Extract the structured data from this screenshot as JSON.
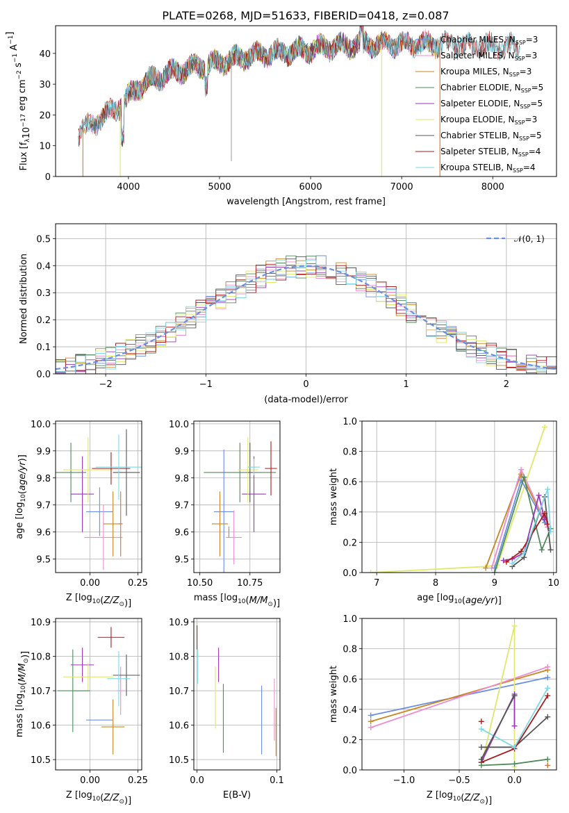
{
  "figure": {
    "title": "PLATE=0268, MJD=51633, FIBERID=0418, z=0.087"
  },
  "colors": {
    "Chabrier MILES": "#6a8fe0",
    "Salpeter MILES": "#ee8ad0",
    "Kroupa MILES": "#c8861e",
    "Chabrier ELODIE": "#4e8a5a",
    "Salpeter ELODIE": "#9a35b8",
    "Kroupa ELODIE": "#dfe86a",
    "Chabrier STELIB": "#555555",
    "Salpeter STELIB": "#aa1a1a",
    "Kroupa STELIB": "#7fd8e6",
    "orange": "#e07020",
    "normal": "#6a8fe0"
  },
  "chart_data": [
    {
      "type": "line",
      "panel": "spectrum",
      "title": "PLATE=0268, MJD=51633, FIBERID=0418, z=0.087",
      "xlabel": "wavelength [Angstrom, rest frame]",
      "ylabel": "Flux [f",
      "ylabel_sub": "λ",
      "ylabel_rest": "10",
      "ylabel_exp": "−17",
      "ylabel_tail": " erg cm",
      "ylabel_exp2": "−2",
      "ylabel_tail2": " s",
      "ylabel_exp3": "−1",
      "ylabel_tail3": " A",
      "ylabel_exp4": "−1",
      "ylabel_end": "]",
      "xlim": [
        3200,
        8700
      ],
      "ylim": [
        0,
        49
      ],
      "xticks": [
        "4000",
        "5000",
        "6000",
        "7000",
        "8000"
      ],
      "yticks": [
        "0",
        "10",
        "20",
        "30",
        "40"
      ],
      "legend": [
        {
          "name": "Chabrier MILES",
          "nssp": "3"
        },
        {
          "name": "Salpeter MILES",
          "nssp": "3"
        },
        {
          "name": "Kroupa MILES",
          "nssp": "3"
        },
        {
          "name": "Chabrier ELODIE",
          "nssp": "5"
        },
        {
          "name": "Salpeter ELODIE",
          "nssp": "5"
        },
        {
          "name": "Kroupa ELODIE",
          "nssp": "3"
        },
        {
          "name": "Chabrier STELIB",
          "nssp": "5"
        },
        {
          "name": "Salpeter STELIB",
          "nssp": "4"
        },
        {
          "name": "Kroupa STELIB",
          "nssp": "4"
        }
      ],
      "legend_nssp_label": "N",
      "legend_nssp_sub": "SSP",
      "continuum": [
        [
          3450,
          14
        ],
        [
          3600,
          17
        ],
        [
          3800,
          21
        ],
        [
          3950,
          24
        ],
        [
          4100,
          29
        ],
        [
          4300,
          32
        ],
        [
          4500,
          34
        ],
        [
          4800,
          36
        ],
        [
          5000,
          37
        ],
        [
          5300,
          39
        ],
        [
          5600,
          40
        ],
        [
          5900,
          41
        ],
        [
          6200,
          42
        ],
        [
          6600,
          43
        ],
        [
          7000,
          43
        ],
        [
          7400,
          43
        ],
        [
          7800,
          42.5
        ],
        [
          8300,
          42
        ]
      ],
      "dropouts": [
        {
          "x": 3500,
          "color": "Kroupa MILES"
        },
        {
          "x": 3910,
          "color": "Kroupa ELODIE"
        },
        {
          "x": 6780,
          "color": "Kroupa ELODIE"
        },
        {
          "x": 7420,
          "color": "orange"
        }
      ]
    },
    {
      "type": "histogram",
      "panel": "residuals",
      "xlabel": "(data-model)/error",
      "ylabel": "Normed distribution",
      "xlim": [
        -2.5,
        2.5
      ],
      "ylim": [
        0,
        0.555
      ],
      "xticks": [
        "−2",
        "−1",
        "0",
        "1",
        "2"
      ],
      "xtick_values": [
        -2,
        -1,
        0,
        1,
        2
      ],
      "yticks": [
        "0.0",
        "0.1",
        "0.2",
        "0.3",
        "0.4",
        "0.5"
      ],
      "ytick_values": [
        0,
        0.1,
        0.2,
        0.3,
        0.4,
        0.5
      ],
      "legend": [
        "𝒩(0, 1)"
      ],
      "bin_width": 0.1,
      "bin_start": -2.5
    },
    {
      "type": "errorbar",
      "panel": "age-vs-Z",
      "xlabel": "Z [log",
      "xlabel_sub": "10",
      "xlabel_rest": "(Z/Z",
      "xlabel_sub2": "⊙",
      "xlabel_end": ")]",
      "ylabel": "age  [log",
      "ylabel_sub": "10",
      "ylabel_rest": "(age/yr)]",
      "xlim": [
        -0.18,
        0.27
      ],
      "ylim": [
        9.45,
        10.01
      ],
      "xticks": [
        "0.00",
        "0.25"
      ],
      "xtick_values": [
        0,
        0.25
      ],
      "yticks": [
        "9.5",
        "9.6",
        "9.7",
        "9.8",
        "9.9",
        "10.0"
      ],
      "ytick_values": [
        9.5,
        9.6,
        9.7,
        9.8,
        9.9,
        10.0
      ],
      "points": [
        {
          "c": "Chabrier MILES",
          "x": 0.05,
          "xe": 0.07,
          "y": 9.675,
          "ye": 0.09
        },
        {
          "c": "Salpeter MILES",
          "x": 0.07,
          "xe": 0.1,
          "y": 9.58,
          "ye": 0.12
        },
        {
          "c": "Kroupa MILES",
          "x": 0.12,
          "xe": 0.05,
          "y": 9.63,
          "ye": 0.12
        },
        {
          "c": "Chabrier ELODIE",
          "x": -0.1,
          "xe": 0.08,
          "y": 9.82,
          "ye": 0.11
        },
        {
          "c": "Salpeter ELODIE",
          "x": -0.04,
          "xe": 0.06,
          "y": 9.74,
          "ye": 0.14
        },
        {
          "c": "Kroupa ELODIE",
          "x": -0.01,
          "xe": 0.13,
          "y": 9.83,
          "ye": 0.12
        },
        {
          "c": "Chabrier STELIB",
          "x": 0.19,
          "xe": 0.07,
          "y": 9.82,
          "ye": 0.16
        },
        {
          "c": "Salpeter STELIB",
          "x": 0.11,
          "xe": 0.1,
          "y": 9.835,
          "ye": 0.06
        },
        {
          "c": "Kroupa STELIB",
          "x": 0.15,
          "xe": 0.12,
          "y": 9.84,
          "ye": 0.12
        },
        {
          "c": "orange",
          "x": 0.16,
          "xe": 0.01,
          "y": 9.63,
          "ye": 0.12
        }
      ]
    },
    {
      "type": "errorbar",
      "panel": "age-vs-mass",
      "xlabel": "mass [log",
      "xlabel_sub": "10",
      "xlabel_rest": "(M/M",
      "xlabel_sub2": "⊙",
      "xlabel_end": ")]",
      "xlim": [
        10.47,
        10.9
      ],
      "ylim": [
        9.45,
        10.01
      ],
      "xticks": [
        "10.50",
        "10.75"
      ],
      "xtick_values": [
        10.5,
        10.75
      ],
      "yticks": [
        "9.5",
        "9.6",
        "9.7",
        "9.8",
        "9.9",
        "10.0"
      ],
      "ytick_values": [
        9.5,
        9.6,
        9.7,
        9.8,
        9.9,
        10.0
      ],
      "points": [
        {
          "c": "Chabrier MILES",
          "x": 10.62,
          "xe": 0.05,
          "y": 9.675,
          "ye": 0.23
        },
        {
          "c": "Salpeter MILES",
          "x": 10.67,
          "xe": 0.04,
          "y": 9.58,
          "ye": 0.1
        },
        {
          "c": "Kroupa MILES",
          "x": 10.6,
          "xe": 0.04,
          "y": 9.63,
          "ye": 0.12
        },
        {
          "c": "Chabrier ELODIE",
          "x": 10.7,
          "xe": 0.18,
          "y": 9.82,
          "ye": 0.11
        },
        {
          "c": "Salpeter ELODIE",
          "x": 10.77,
          "xe": 0.06,
          "y": 9.74,
          "ye": 0.14
        },
        {
          "c": "Kroupa ELODIE",
          "x": 10.74,
          "xe": 0.05,
          "y": 9.83,
          "ye": 0.12
        },
        {
          "c": "Chabrier STELIB",
          "x": 10.75,
          "xe": 0.01,
          "y": 9.82,
          "ye": 0.11
        },
        {
          "c": "Salpeter STELIB",
          "x": 10.855,
          "xe": 0.03,
          "y": 9.835,
          "ye": 0.1
        },
        {
          "c": "Kroupa STELIB",
          "x": 10.77,
          "xe": 0.03,
          "y": 9.84,
          "ye": 0.03
        },
        {
          "c": "Kroupa MILES",
          "x": 10.645,
          "xe": 0.0,
          "y": 9.6,
          "ye": 0.02
        }
      ]
    },
    {
      "type": "line",
      "panel": "weight-vs-age",
      "xlabel": "age  [log",
      "xlabel_sub": "10",
      "xlabel_rest": "(age/yr)]",
      "ylabel": "mass weight",
      "xlim": [
        6.75,
        10.05
      ],
      "ylim": [
        0,
        1.0
      ],
      "xticks": [
        "7",
        "8",
        "9",
        "10"
      ],
      "xtick_values": [
        7,
        8,
        9,
        10
      ],
      "yticks": [
        "0.0",
        "0.2",
        "0.4",
        "0.6",
        "0.8",
        "1.0"
      ],
      "ytick_values": [
        0,
        0.2,
        0.4,
        0.6,
        0.8,
        1.0
      ],
      "series": [
        {
          "c": "Kroupa ELODIE",
          "x": [
            6.9,
            8.85,
            9.05,
            9.85
          ],
          "y": [
            0.0,
            0.04,
            0.05,
            0.96
          ]
        },
        {
          "c": "Kroupa MILES",
          "x": [
            8.85,
            9.45,
            9.9
          ],
          "y": [
            0.03,
            0.65,
            0.3
          ]
        },
        {
          "c": "Salpeter MILES",
          "x": [
            8.95,
            9.45,
            9.9
          ],
          "y": [
            0.03,
            0.68,
            0.3
          ]
        },
        {
          "c": "Chabrier MILES",
          "x": [
            9.0,
            9.45,
            9.85
          ],
          "y": [
            0.03,
            0.61,
            0.33
          ]
        },
        {
          "c": "Chabrier ELODIE",
          "x": [
            9.0,
            9.5,
            9.8,
            9.95
          ],
          "y": [
            0.0,
            0.63,
            0.15,
            0.29
          ]
        },
        {
          "c": "Salpeter ELODIE",
          "x": [
            9.15,
            9.3,
            9.5,
            9.75,
            9.85
          ],
          "y": [
            0.08,
            0.09,
            0.13,
            0.51,
            0.35
          ]
        },
        {
          "c": "Chabrier STELIB",
          "x": [
            9.3,
            9.5,
            9.85,
            9.95
          ],
          "y": [
            0.04,
            0.1,
            0.5,
            0.15
          ]
        },
        {
          "c": "Salpeter STELIB",
          "x": [
            9.2,
            9.45,
            9.85,
            9.9
          ],
          "y": [
            0.07,
            0.14,
            0.39,
            0.32
          ]
        },
        {
          "c": "Kroupa STELIB",
          "x": [
            9.3,
            9.5,
            9.9,
            9.95
          ],
          "y": [
            0.06,
            0.13,
            0.55,
            0.27
          ]
        }
      ]
    },
    {
      "type": "errorbar",
      "panel": "mass-vs-Z",
      "xlabel": "Z [log",
      "xlabel_sub": "10",
      "xlabel_rest": "(Z/Z",
      "xlabel_sub2": "⊙",
      "xlabel_end": ")]",
      "ylabel": "mass [log",
      "ylabel_sub": "10",
      "ylabel_rest": "(M/M",
      "ylabel_sub2": "⊙",
      "ylabel_end": ")]",
      "xlim": [
        -0.18,
        0.27
      ],
      "ylim": [
        10.47,
        10.91
      ],
      "xticks": [
        "0.00",
        "0.25"
      ],
      "xtick_values": [
        0,
        0.25
      ],
      "yticks": [
        "10.5",
        "10.6",
        "10.7",
        "10.8",
        "10.9"
      ],
      "ytick_values": [
        10.5,
        10.6,
        10.7,
        10.8,
        10.9
      ],
      "points": [
        {
          "c": "Chabrier MILES",
          "x": 0.05,
          "xe": 0.07,
          "y": 10.615,
          "ye": 0.0
        },
        {
          "c": "Salpeter MILES",
          "x": 0.16,
          "xe": 0.02,
          "y": 10.7,
          "ye": 0.07
        },
        {
          "c": "Kroupa MILES",
          "x": 0.12,
          "xe": 0.06,
          "y": 10.595,
          "ye": 0.08
        },
        {
          "c": "Chabrier ELODIE",
          "x": -0.09,
          "xe": 0.08,
          "y": 10.7,
          "ye": 0.12
        },
        {
          "c": "Salpeter ELODIE",
          "x": -0.04,
          "xe": 0.06,
          "y": 10.775,
          "ye": 0.05
        },
        {
          "c": "Kroupa ELODIE",
          "x": -0.01,
          "xe": 0.13,
          "y": 10.74,
          "ye": 0.04
        },
        {
          "c": "Chabrier STELIB",
          "x": 0.19,
          "xe": 0.07,
          "y": 10.745,
          "ye": 0.06
        },
        {
          "c": "Salpeter STELIB",
          "x": 0.11,
          "xe": 0.07,
          "y": 10.855,
          "ye": 0.03
        },
        {
          "c": "Kroupa STELIB",
          "x": 0.15,
          "xe": 0.06,
          "y": 10.735,
          "ye": 0.08
        },
        {
          "c": "Chabrier ELODIE",
          "x": -0.04,
          "xe": 0.04,
          "y": 10.7,
          "ye": 0.0
        }
      ]
    },
    {
      "type": "errorbar",
      "panel": "mass-vs-EBV",
      "xlabel": "E(B-V)",
      "xlim": [
        -0.004,
        0.104
      ],
      "ylim": [
        10.47,
        10.91
      ],
      "xticks": [
        "0.0",
        "0.1"
      ],
      "xtick_values": [
        0,
        0.1
      ],
      "yticks": [
        "10.5",
        "10.6",
        "10.7",
        "10.8",
        "10.9"
      ],
      "ytick_values": [
        10.5,
        10.6,
        10.7,
        10.8,
        10.9
      ],
      "points": [
        {
          "c": "Salpeter STELIB",
          "x": 0.0,
          "xe": 0.0,
          "y": 10.855,
          "ye": 0.035
        },
        {
          "c": "Kroupa STELIB",
          "x": 0.001,
          "xe": 0.0,
          "y": 10.77,
          "ye": 0.05
        },
        {
          "c": "Kroupa ELODIE",
          "x": 0.023,
          "xe": 0.0,
          "y": 10.68,
          "ye": 0.09
        },
        {
          "c": "Salpeter ELODIE",
          "x": 0.027,
          "xe": 0.0,
          "y": 10.775,
          "ye": 0.05
        },
        {
          "c": "Chabrier ELODIE",
          "x": 0.033,
          "xe": 0.0,
          "y": 10.62,
          "ye": 0.1
        },
        {
          "c": "Chabrier MILES",
          "x": 0.081,
          "xe": 0.0,
          "y": 10.615,
          "ye": 0.1
        },
        {
          "c": "Salpeter MILES",
          "x": 0.097,
          "xe": 0.0,
          "y": 10.645,
          "ye": 0.09
        },
        {
          "c": "Kroupa MILES",
          "x": 0.099,
          "xe": 0.0,
          "y": 10.58,
          "ye": 0.07
        }
      ]
    },
    {
      "type": "line",
      "panel": "weight-vs-Z",
      "xlabel": "Z [log",
      "xlabel_sub": "10",
      "xlabel_rest": "(Z/Z",
      "xlabel_sub2": "⊙",
      "xlabel_end": ")]",
      "ylabel": "mass weight",
      "xlim": [
        -1.38,
        0.38
      ],
      "ylim": [
        0,
        1.0
      ],
      "xticks": [
        "−1.0",
        "−0.5",
        "0.0"
      ],
      "xtick_values": [
        -1.0,
        -0.5,
        0.0
      ],
      "yticks": [
        "0.0",
        "0.2",
        "0.4",
        "0.6",
        "0.8",
        "1.0"
      ],
      "ytick_values": [
        0,
        0.2,
        0.4,
        0.6,
        0.8,
        1.0
      ],
      "series": [
        {
          "c": "Chabrier MILES",
          "x": [
            -1.3,
            0.3
          ],
          "y": [
            0.36,
            0.61
          ]
        },
        {
          "c": "Kroupa MILES",
          "x": [
            -1.3,
            0.3
          ],
          "y": [
            0.32,
            0.66
          ]
        },
        {
          "c": "Salpeter MILES",
          "x": [
            -1.3,
            0.3
          ],
          "y": [
            0.28,
            0.68
          ]
        },
        {
          "c": "Kroupa ELODIE",
          "x": [
            -0.3,
            0.0,
            0.0
          ],
          "y": [
            0.03,
            0.95,
            0.02
          ]
        },
        {
          "c": "Salpeter ELODIE",
          "x": [
            -0.3,
            0.0,
            0.0
          ],
          "y": [
            0.05,
            0.5,
            0.29
          ]
        },
        {
          "c": "Chabrier STELIB",
          "x": [
            -0.3,
            0.0,
            0.3
          ],
          "y": [
            0.15,
            0.15,
            0.35
          ]
        },
        {
          "c": "Salpeter STELIB",
          "x": [
            -0.3,
            0.0,
            0.3
          ],
          "y": [
            0.05,
            0.14,
            0.49
          ]
        },
        {
          "c": "Kroupa STELIB",
          "x": [
            -0.3,
            0.0,
            0.3
          ],
          "y": [
            0.27,
            0.15,
            0.54
          ]
        },
        {
          "c": "Chabrier ELODIE",
          "x": [
            -0.3,
            0.0,
            0.3
          ],
          "y": [
            0.03,
            0.04,
            0.07
          ]
        },
        {
          "c": "Chabrier STELIB",
          "x": [
            -0.3,
            0.0
          ],
          "y": [
            0.07,
            0.49
          ]
        },
        {
          "c": "Salpeter STELIB",
          "x": [
            -0.3
          ],
          "y": [
            0.32
          ]
        },
        {
          "c": "orange",
          "x": [
            0.3
          ],
          "y": [
            0.03
          ]
        }
      ]
    }
  ]
}
